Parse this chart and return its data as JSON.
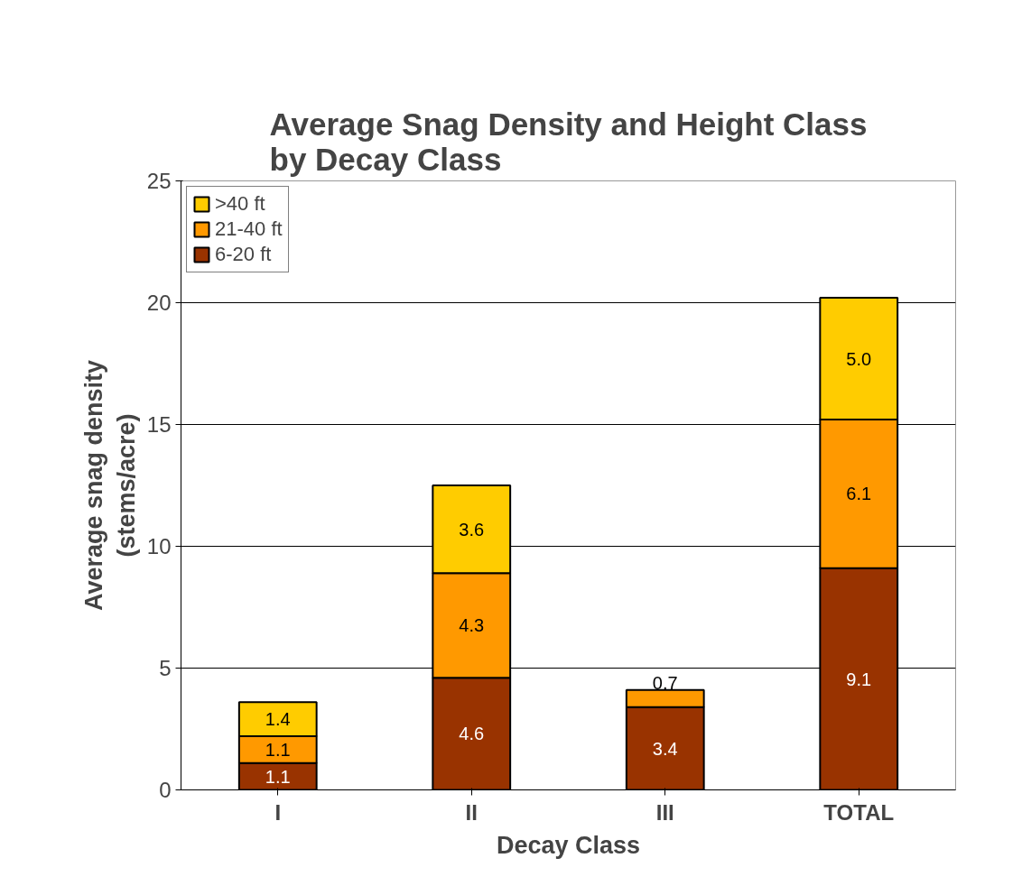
{
  "chart_data": {
    "type": "bar",
    "title": "Average Snag Density and Height Class\nby Decay Class",
    "xlabel": "Decay Class",
    "ylabel": "Average snag density\n(stems/acre)",
    "categories": [
      "I",
      "II",
      "III",
      "TOTAL"
    ],
    "stacked": true,
    "series": [
      {
        "name": "6-20 ft",
        "color": "#993300",
        "values": [
          1.1,
          4.6,
          3.4,
          9.1
        ],
        "value_labels": [
          "1.1",
          "4.6",
          "3.4",
          "9.1"
        ]
      },
      {
        "name": "21-40 ft",
        "color": "#ff9900",
        "values": [
          1.1,
          4.3,
          0.7,
          6.1
        ],
        "value_labels": [
          "1.1",
          "4.3",
          "0.7",
          "6.1"
        ]
      },
      {
        "name": ">40 ft",
        "color": "#ffcc00",
        "values": [
          1.4,
          3.6,
          null,
          5.0
        ],
        "value_labels": [
          "1.4",
          "3.6",
          null,
          "5.0"
        ]
      }
    ],
    "ylim": [
      0,
      25
    ],
    "yticks": [
      0,
      5,
      10,
      15,
      20,
      25
    ],
    "grid": "y",
    "legend": "top left"
  }
}
